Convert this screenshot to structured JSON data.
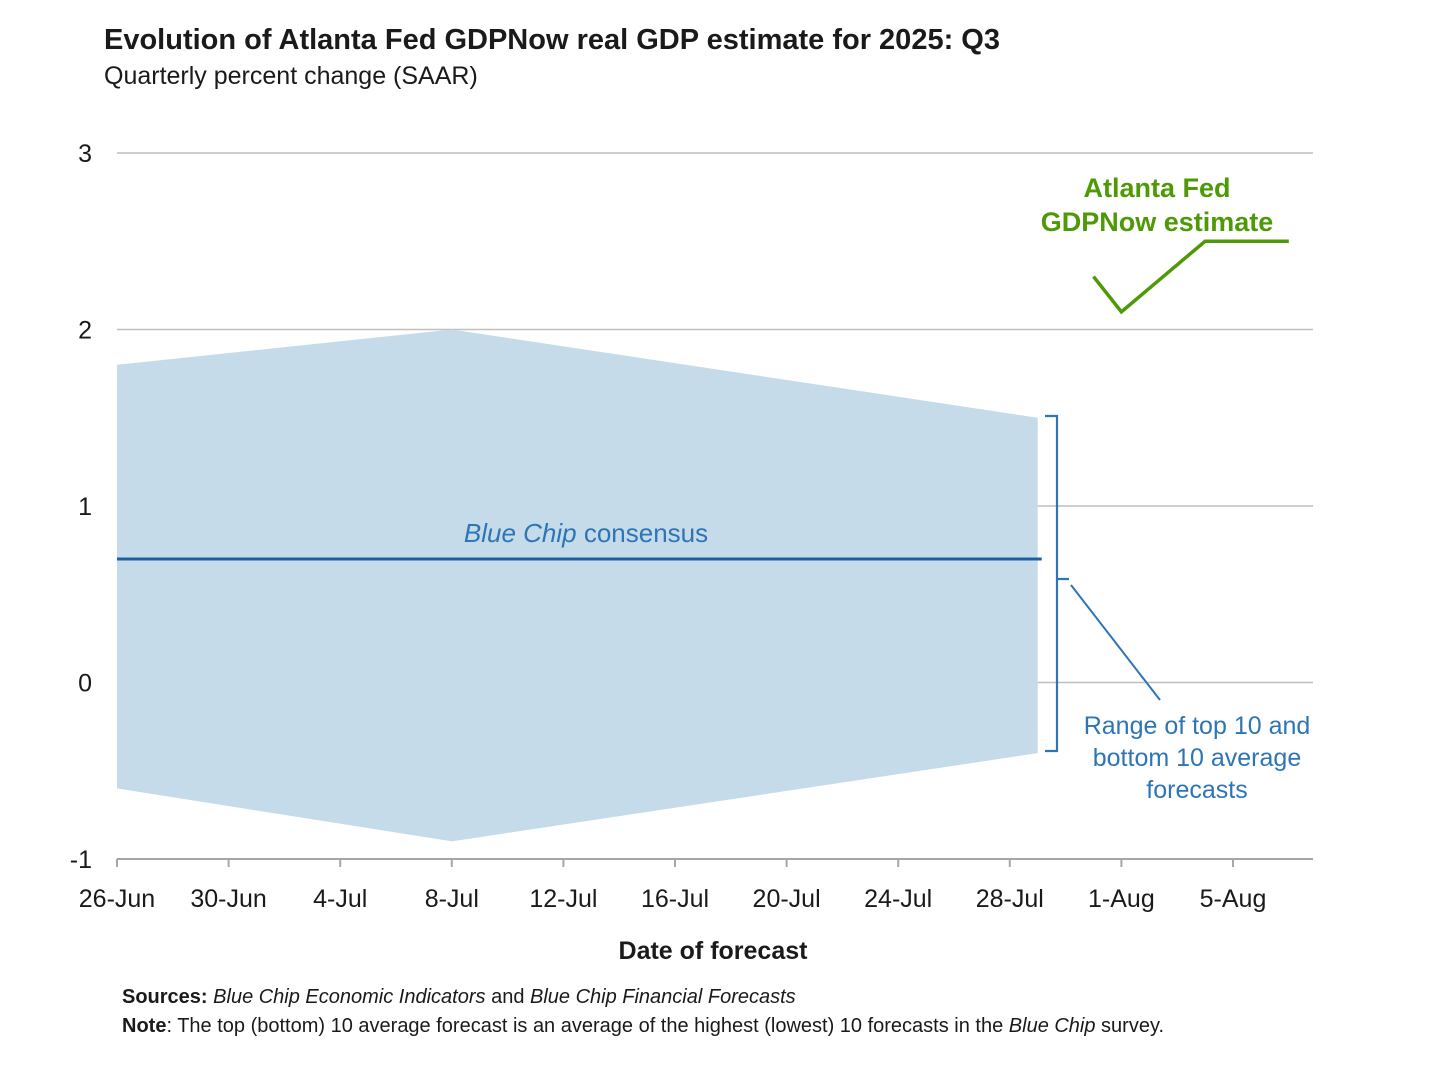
{
  "colors": {
    "band_fill": "#c5dbea",
    "consensus_line": "#1f5f9e",
    "consensus_label": "#2e75b6",
    "gdpnow_line": "#4e9a06",
    "gdpnow_label": "#4e9a06",
    "range_bracket": "#2e75b6",
    "gridline": "#bfbfbf",
    "axis": "#a6a6a6",
    "text": "#1a1a1a"
  },
  "chart_data": {
    "type": "area",
    "title": "Evolution of Atlanta Fed GDPNow real GDP estimate for 2025: Q3",
    "subtitle": "Quarterly percent change (SAAR)",
    "xlabel": "Date of forecast",
    "ylabel": "",
    "x_ticks": [
      "26-Jun",
      "30-Jun",
      "4-Jul",
      "8-Jul",
      "12-Jul",
      "16-Jul",
      "20-Jul",
      "24-Jul",
      "28-Jul",
      "1-Aug",
      "5-Aug"
    ],
    "x_domain_days": [
      0,
      43
    ],
    "y_ticks": [
      3,
      2,
      1,
      0,
      -1
    ],
    "ylim": [
      -1,
      3
    ],
    "grid": true,
    "series": [
      {
        "name": "Range of top 10 and bottom 10 average forecasts",
        "kind": "band",
        "points": [
          {
            "day": 0,
            "low": -0.6,
            "high": 1.8
          },
          {
            "day": 12,
            "low": -0.9,
            "high": 2.0
          },
          {
            "day": 33,
            "low": -0.4,
            "high": 1.5
          }
        ]
      },
      {
        "name": "Blue Chip consensus",
        "kind": "line",
        "points": [
          {
            "day": 0,
            "value": 0.7
          },
          {
            "day": 33,
            "value": 0.7
          }
        ]
      },
      {
        "name": "Atlanta Fed GDPNow estimate",
        "kind": "line",
        "points": [
          {
            "day": 35,
            "value": 2.3
          },
          {
            "day": 36,
            "value": 2.1
          },
          {
            "day": 39,
            "value": 2.5
          },
          {
            "day": 42,
            "value": 2.5
          }
        ]
      }
    ],
    "annotations": {
      "consensus_label_italic": "Blue Chip",
      "consensus_label_rest": " consensus",
      "gdpnow_label": [
        "Atlanta Fed",
        "GDPNow estimate"
      ],
      "range_label": [
        "Range of top 10 and",
        "bottom 10 average",
        "forecasts"
      ]
    }
  },
  "footer": {
    "sources_label": "Sources:",
    "sources_text_1": "Blue Chip Economic Indicators",
    "sources_text_2": " and ",
    "sources_text_3": "Blue Chip Financial Forecasts",
    "note_label": "Note",
    "note_text_1": ": The top (bottom) 10 average forecast is an average of the highest (lowest) 10 forecasts in the ",
    "note_text_2": "Blue Chip",
    "note_text_3": " survey."
  }
}
